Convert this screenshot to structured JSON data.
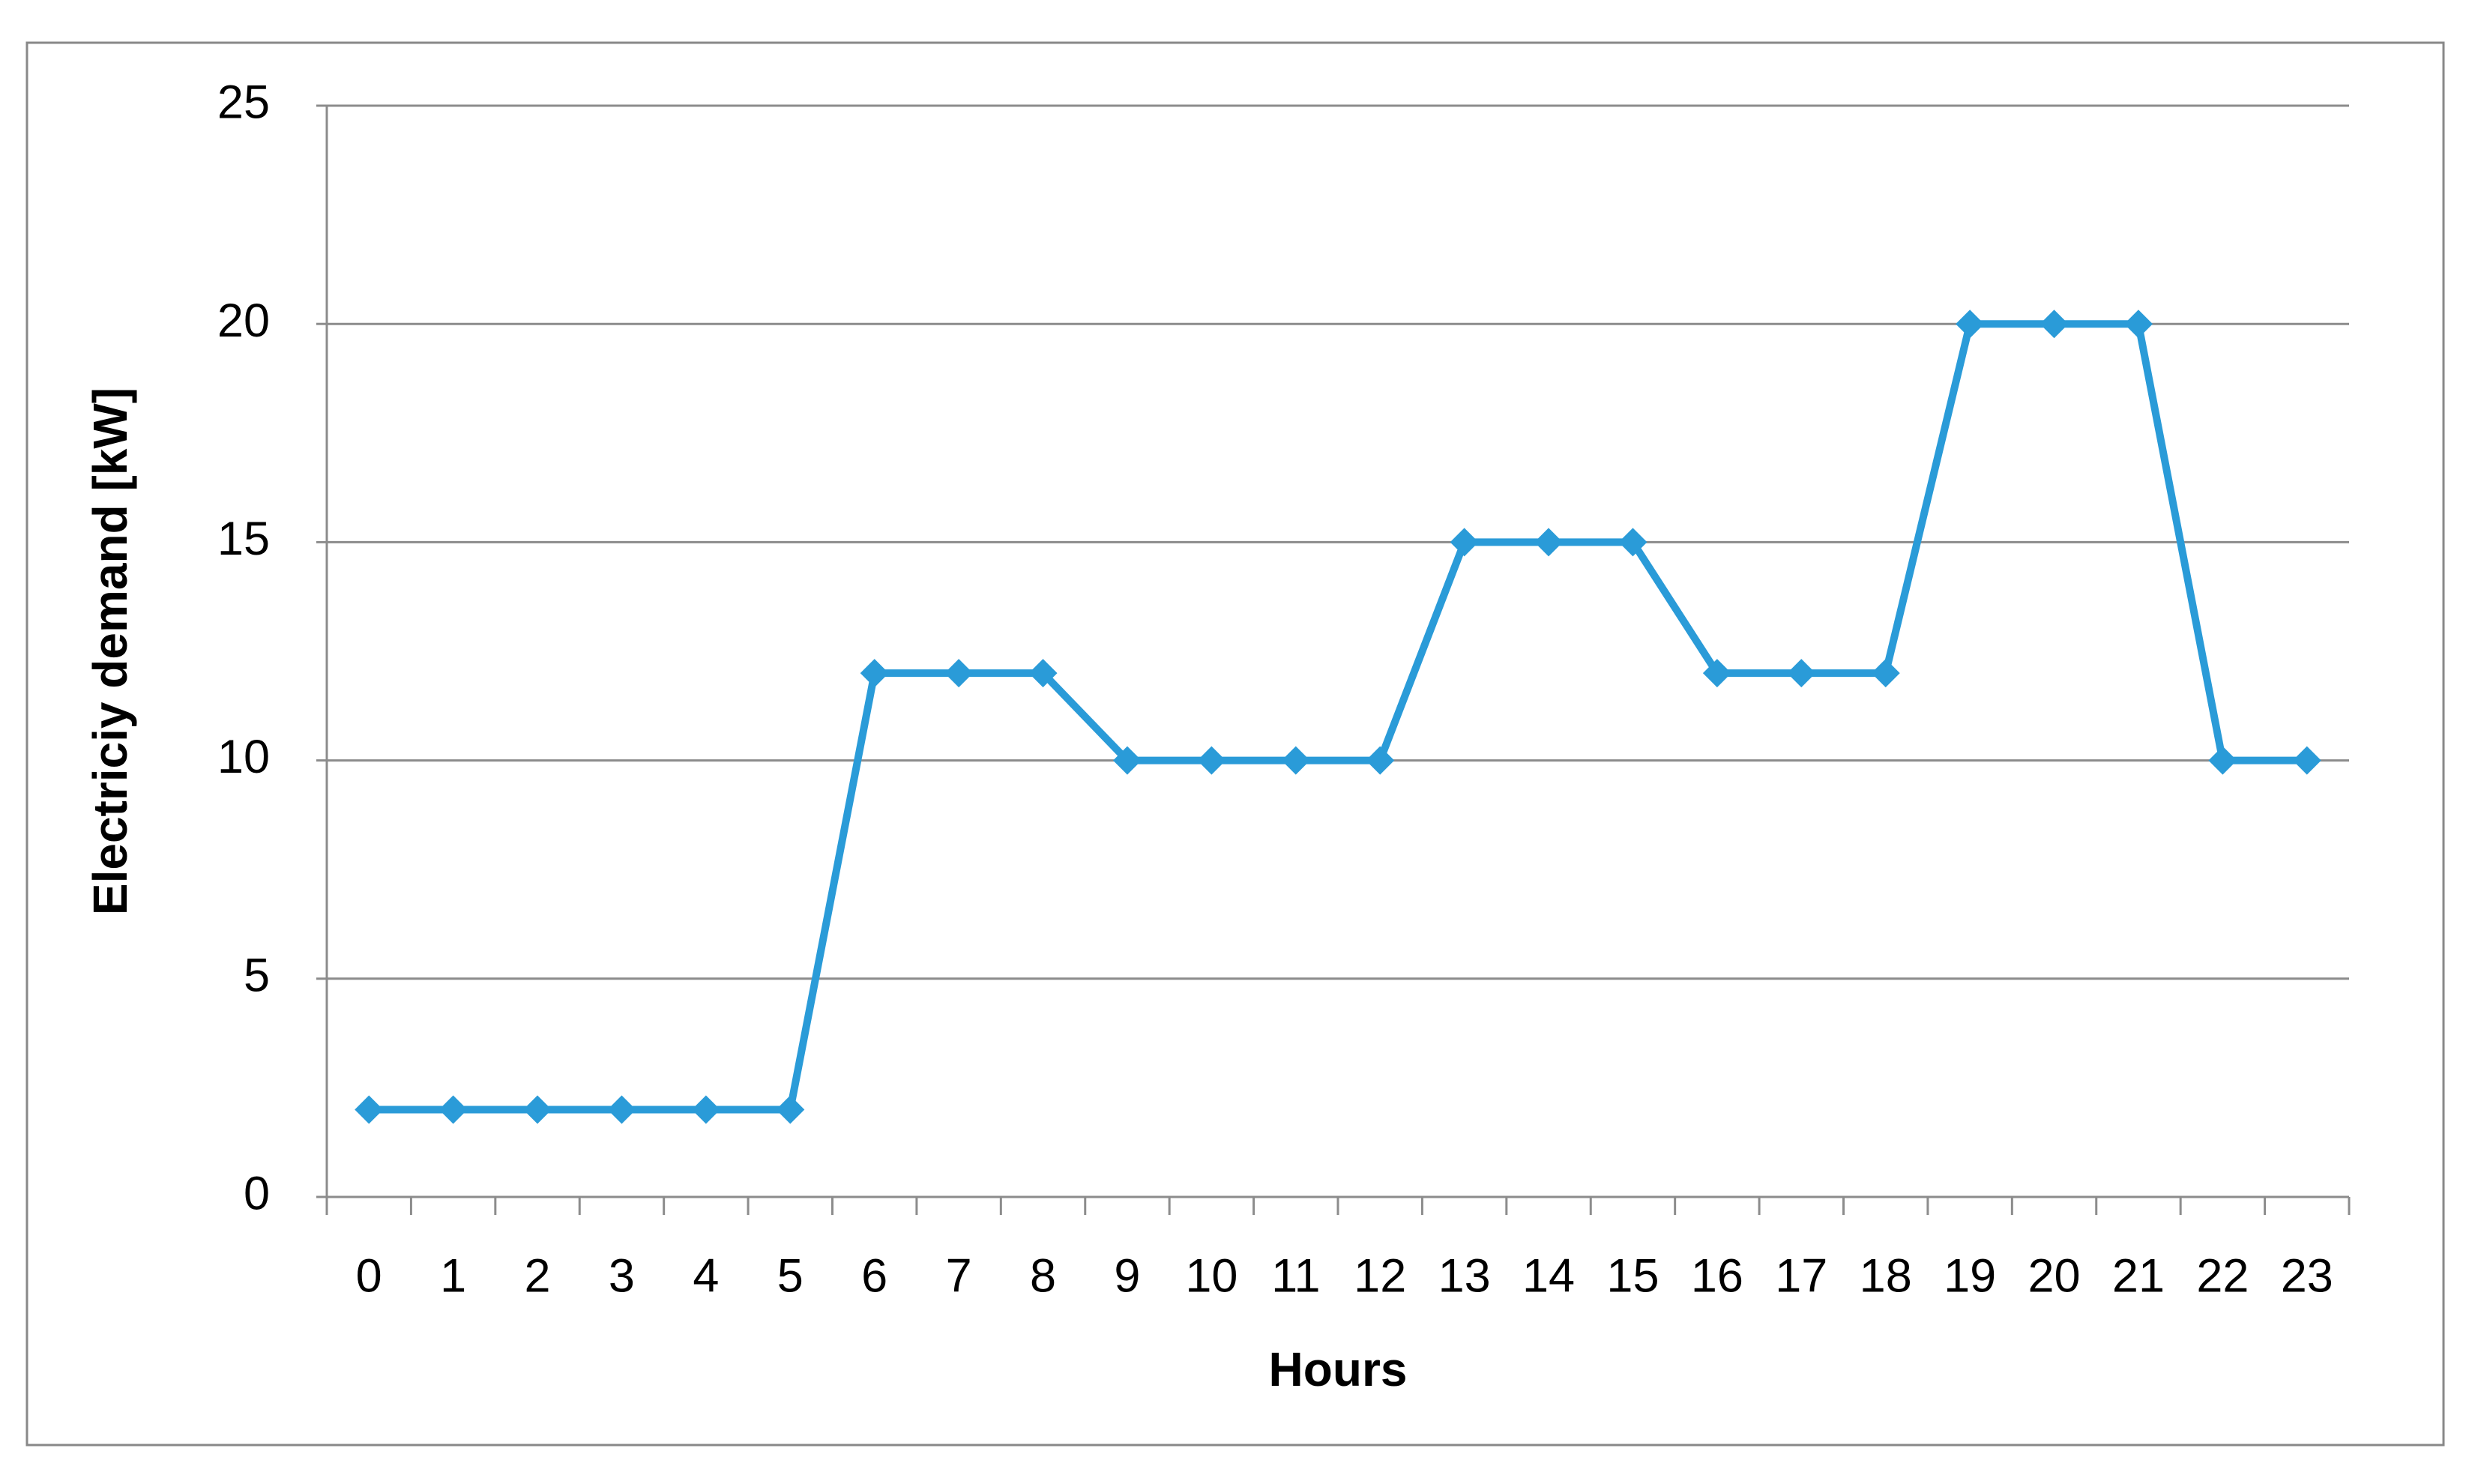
{
  "chart_data": {
    "type": "line",
    "x_label": "Hours",
    "y_label": "Electriciy demand [kW]",
    "categories": [
      "0",
      "1",
      "2",
      "3",
      "4",
      "5",
      "6",
      "7",
      "8",
      "9",
      "10",
      "11",
      "12",
      "13",
      "14",
      "15",
      "16",
      "17",
      "18",
      "19",
      "20",
      "21",
      "22",
      "23"
    ],
    "values": [
      2,
      2,
      2,
      2,
      2,
      2,
      12,
      12,
      12,
      10,
      10,
      10,
      10,
      15,
      15,
      15,
      12,
      12,
      12,
      20,
      20,
      20,
      10,
      10
    ],
    "color": "#2a9bd8",
    "ylim": [
      0,
      25
    ],
    "yticks": [
      0,
      5,
      10,
      15,
      20,
      25
    ],
    "grid": true
  }
}
